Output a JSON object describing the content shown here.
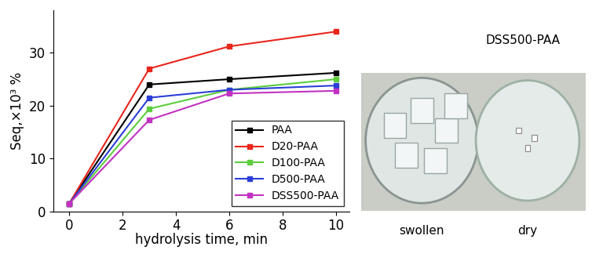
{
  "chart_data": {
    "type": "line",
    "xlabel": "hydrolysis time, min",
    "ylabel": "Seq,×10³ %",
    "x": [
      0,
      3,
      6,
      10
    ],
    "series": [
      {
        "name": "PAA",
        "color": "#000000",
        "marker": "square",
        "values": [
          1.5,
          24.0,
          25.0,
          26.2
        ]
      },
      {
        "name": "D20-PAA",
        "color": "#e8261c",
        "marker": "square",
        "values": [
          1.5,
          27.0,
          31.2,
          34.0
        ]
      },
      {
        "name": "D100-PAA",
        "color": "#5ccd3c",
        "marker": "square",
        "values": [
          1.5,
          19.4,
          23.0,
          25.0
        ]
      },
      {
        "name": "D500-PAA",
        "color": "#2b3fd6",
        "marker": "square",
        "values": [
          1.5,
          21.5,
          23.0,
          23.8
        ]
      },
      {
        "name": "DSS500-PAA",
        "color": "#c232c2",
        "marker": "square",
        "values": [
          1.5,
          17.3,
          22.3,
          22.8
        ]
      }
    ],
    "xlim": [
      -0.6,
      10.5
    ],
    "xticks": [
      0,
      2,
      4,
      6,
      8,
      10
    ],
    "ylim": [
      0,
      38
    ],
    "yticks": [
      0,
      10,
      20,
      30
    ],
    "grid": false,
    "legend": "lower right"
  },
  "photo": {
    "title": "DSS500-PAA",
    "captions": [
      "swollen",
      "dry"
    ]
  }
}
